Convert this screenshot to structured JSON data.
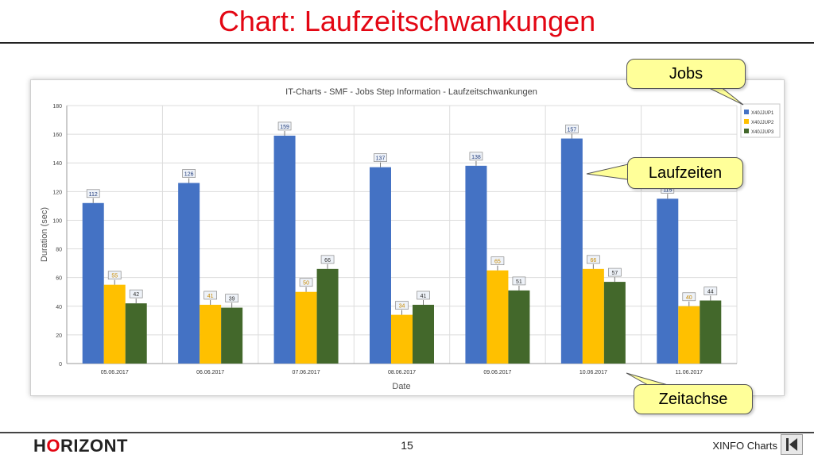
{
  "slide": {
    "title": "Chart: Laufzeitschwankungen",
    "logo_prefix": "H",
    "logo_o": "O",
    "logo_suffix": "RIZONT",
    "page_number": "15",
    "footer_label": "XINFO Charts"
  },
  "callouts": {
    "jobs": "Jobs",
    "laufzeiten": "Laufzeiten",
    "zeitachse": "Zeitachse"
  },
  "chart_data": {
    "type": "bar",
    "title": "IT-Charts - SMF - Jobs Step Information - Laufzeitschwankungen",
    "xlabel": "Date",
    "ylabel": "Duration (sec)",
    "ylim": [
      0,
      180
    ],
    "yticks": [
      0,
      20,
      40,
      60,
      80,
      100,
      120,
      140,
      160,
      180
    ],
    "grid": true,
    "legend_position": "top-right",
    "categories": [
      "05.06.2017",
      "06.06.2017",
      "07.06.2017",
      "08.06.2017",
      "09.06.2017",
      "10.06.2017",
      "11.06.2017"
    ],
    "series": [
      {
        "name": "X40JJUP1",
        "color": "#4472c4",
        "label_color": "#1f3a7a",
        "values": [
          112,
          126,
          159,
          137,
          138,
          157,
          115
        ]
      },
      {
        "name": "X40JJUP2",
        "color": "#ffc000",
        "label_color": "#c88a00",
        "values": [
          55,
          41,
          50,
          34,
          65,
          66,
          40
        ]
      },
      {
        "name": "X40JJUP3",
        "color": "#43682b",
        "label_color": "#333333",
        "values": [
          42,
          39,
          66,
          41,
          51,
          57,
          44
        ]
      }
    ]
  }
}
